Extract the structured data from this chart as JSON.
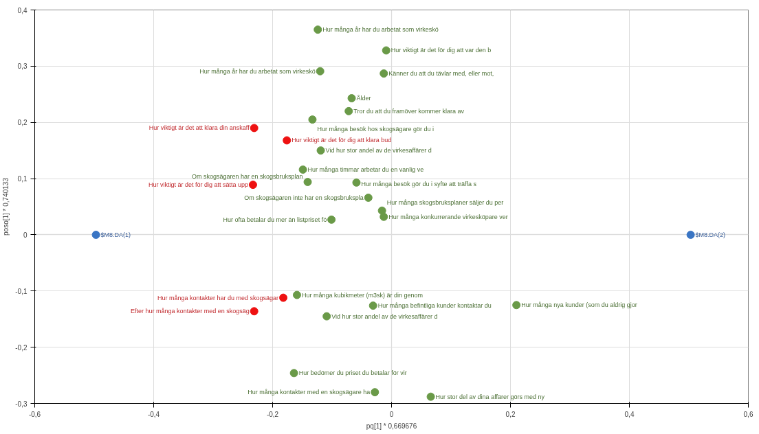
{
  "chart_data": {
    "type": "scatter",
    "xlabel": "pq[1] * 0,669676",
    "ylabel": "poso[1] * 0,740133",
    "xlim": [
      -0.6,
      0.6
    ],
    "ylim": [
      -0.3,
      0.4
    ],
    "xticks": [
      {
        "value": -0.6,
        "label": "-0,6"
      },
      {
        "value": -0.4,
        "label": "-0,4"
      },
      {
        "value": -0.2,
        "label": "-0,2"
      },
      0,
      {
        "value": 0.2,
        "label": "0,2"
      },
      {
        "value": 0.4,
        "label": "0,4"
      },
      {
        "value": 0.6,
        "label": "0,6"
      }
    ],
    "yticks": [
      {
        "value": -0.3,
        "label": "-0,3"
      },
      {
        "value": -0.2,
        "label": "-0,2"
      },
      {
        "value": -0.1,
        "label": "-0,1"
      },
      0,
      {
        "value": 0.1,
        "label": "0,1"
      },
      {
        "value": 0.2,
        "label": "0,2"
      },
      {
        "value": 0.3,
        "label": "0,3"
      },
      {
        "value": 0.4,
        "label": "0,4"
      }
    ],
    "grid": true,
    "marker": "circle",
    "series": [
      {
        "color": "#6a9a48",
        "x": [
          -0.124,
          -0.009,
          -0.12,
          -0.013,
          -0.067,
          -0.072,
          -0.133,
          -0.119,
          -0.149,
          -0.141,
          -0.059,
          -0.039,
          -0.016,
          -0.013,
          -0.101,
          -0.159,
          -0.031,
          -0.109,
          0.21,
          -0.164,
          -0.028,
          0.066
        ],
        "values": [
          0.365,
          0.328,
          0.291,
          0.287,
          0.243,
          0.22,
          0.205,
          0.15,
          0.116,
          0.094,
          0.093,
          0.066,
          0.043,
          0.032,
          0.027,
          -0.107,
          -0.126,
          -0.145,
          -0.125,
          -0.246,
          -0.28,
          -0.288
        ]
      },
      {
        "color": "#ee1111",
        "x": [
          -0.231,
          -0.176,
          -0.233,
          -0.182,
          -0.231
        ],
        "values": [
          0.19,
          0.168,
          0.089,
          -0.112,
          -0.136
        ]
      },
      {
        "color": "#3a75c4",
        "x": [
          -0.497,
          0.503
        ],
        "values": [
          0,
          0
        ]
      }
    ],
    "annotations": [
      {
        "text": "Hur många år har du arbetat som virkeskö",
        "x": -0.124,
        "y": 0.365
      },
      {
        "text": "Hur viktigt är det för dig att var den b",
        "x": -0.009,
        "y": 0.328
      },
      {
        "text": "Hur många år har du arbetat som virkeskö",
        "x": -0.12,
        "y": 0.291
      },
      {
        "text": "Känner du att du tävlar med, eller mot,",
        "x": -0.013,
        "y": 0.287
      },
      {
        "text": "Ålder",
        "x": -0.067,
        "y": 0.243
      },
      {
        "text": "Tror du att du framöver kommer klara av",
        "x": -0.072,
        "y": 0.22
      },
      {
        "text": "Hur många besök hos skogsägare gör du i",
        "x": -0.133,
        "y": 0.205
      },
      {
        "text": "Vid hur stor andel av de virkesaffärer d",
        "x": -0.119,
        "y": 0.15
      },
      {
        "text": "Hur många timmar arbetar du en vanlig ve",
        "x": -0.149,
        "y": 0.116
      },
      {
        "text": "Om skogsägaren har en skogsbruksplan",
        "x": -0.141,
        "y": 0.094
      },
      {
        "text": "Hur många besök gör du i syfte att träffa s",
        "x": -0.059,
        "y": 0.093
      },
      {
        "text": "Om skogsägaren inte har en skogsbrukspla",
        "x": -0.039,
        "y": 0.066
      },
      {
        "text": "Hur många skogsbruksplaner säljer du per",
        "x": -0.016,
        "y": 0.043
      },
      {
        "text": "Hur många konkurrerande virkesköpare ver",
        "x": -0.013,
        "y": 0.032
      },
      {
        "text": "Hur ofta betalar du mer än listpriset fö",
        "x": -0.101,
        "y": 0.027
      },
      {
        "text": "Hur många kubikmeter (m3sk) är din genom",
        "x": -0.159,
        "y": -0.107
      },
      {
        "text": "Hur många befintliga kunder kontaktar du",
        "x": -0.031,
        "y": -0.126
      },
      {
        "text": "Vid hur stor andel av de virkesaffärer d",
        "x": -0.109,
        "y": -0.145
      },
      {
        "text": "Hur många nya kunder (som du aldrig gjor",
        "x": 0.21,
        "y": -0.125
      },
      {
        "text": "Hur bedömer du priset du betalar för vir",
        "x": -0.164,
        "y": -0.246
      },
      {
        "text": "Hur många kontakter med en skogsägare ha",
        "x": -0.028,
        "y": -0.28
      },
      {
        "text": "Hur stor del av dina affärer görs med ny",
        "x": 0.066,
        "y": -0.288
      },
      {
        "text": "Hur viktigt är det att klara din anskaff",
        "x": -0.231,
        "y": 0.19
      },
      {
        "text": "Hur viktigt är det för dig att klara bud",
        "x": -0.176,
        "y": 0.168
      },
      {
        "text": "Hur viktigt är det för dig att sätta upp",
        "x": -0.233,
        "y": 0.089
      },
      {
        "text": "Hur många kontakter har du med skogsägar",
        "x": -0.182,
        "y": -0.112
      },
      {
        "text": "Efter hur många kontakter med en skogsäg",
        "x": -0.231,
        "y": -0.136
      },
      {
        "text": "$M8.DA(1)",
        "x": -0.497,
        "y": 0
      },
      {
        "text": "$M8.DA(2)",
        "x": 0.503,
        "y": 0
      }
    ]
  }
}
